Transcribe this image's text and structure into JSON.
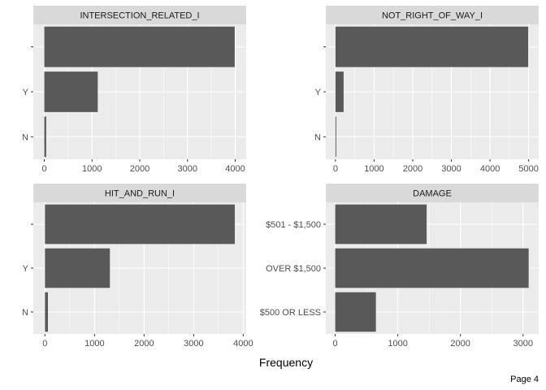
{
  "page_label": "Page 4",
  "colors": {
    "panel_bg": "#ebebeb",
    "strip_bg": "#d9d9d9",
    "grid_major": "#ffffff",
    "bar": "#595959",
    "tick_text": "#4d4d4d"
  },
  "chart_data": {
    "type": "bar",
    "orientation": "horizontal",
    "xlabel": "Frequency",
    "grid": true,
    "panels": [
      {
        "title": "INTERSECTION_RELATED_I",
        "categories": [
          "",
          "Y",
          "N"
        ],
        "values": [
          3990,
          1120,
          40
        ],
        "xlim": [
          -230,
          4230
        ],
        "xticks": [
          0,
          1000,
          2000,
          3000,
          4000
        ],
        "xticklabels": [
          "0",
          "1000",
          "2000",
          "3000",
          "4000"
        ]
      },
      {
        "title": "NOT_RIGHT_OF_WAY_I",
        "categories": [
          "",
          "Y",
          "N"
        ],
        "values": [
          4990,
          210,
          10
        ],
        "xlim": [
          -250,
          5260
        ],
        "xticks": [
          0,
          1000,
          2000,
          3000,
          4000,
          5000
        ],
        "xticklabels": [
          "0",
          "1000",
          "2000",
          "3000",
          "4000",
          "5000"
        ]
      },
      {
        "title": "HIT_AND_RUN_I",
        "categories": [
          "",
          "Y",
          "N"
        ],
        "values": [
          3830,
          1310,
          60
        ],
        "xlim": [
          -235,
          4060
        ],
        "xticks": [
          0,
          1000,
          2000,
          3000,
          4000
        ],
        "xticklabels": [
          "0",
          "1000",
          "2000",
          "3000",
          "4000"
        ]
      },
      {
        "title": "DAMAGE",
        "categories": [
          "$501 - $1,500",
          "OVER $1,500",
          "$500 OR LESS"
        ],
        "values": [
          1460,
          3090,
          650
        ],
        "xlim": [
          -150,
          3250
        ],
        "xticks": [
          0,
          1000,
          2000,
          3000
        ],
        "xticklabels": [
          "0",
          "1000",
          "2000",
          "3000"
        ]
      }
    ]
  }
}
